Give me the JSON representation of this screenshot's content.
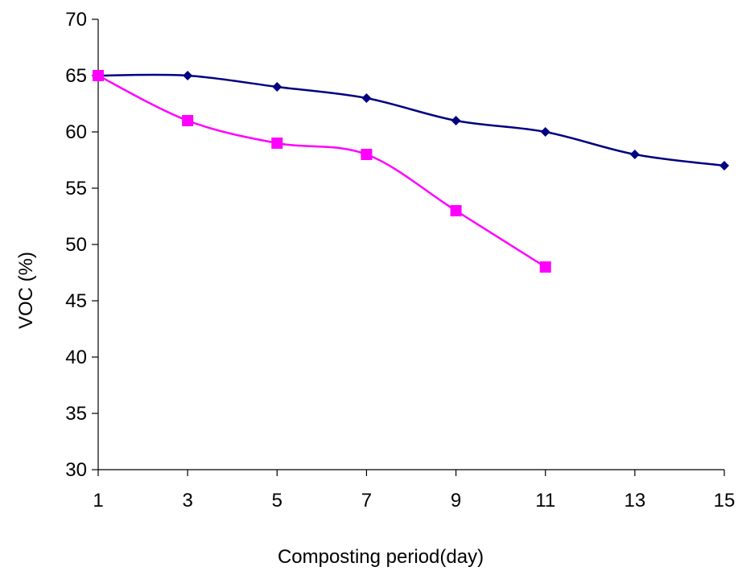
{
  "chart_data": {
    "type": "line",
    "title": "",
    "xlabel": "Composting period(day)",
    "ylabel": "VOC (%)",
    "xlim": [
      1,
      15
    ],
    "ylim": [
      30,
      70
    ],
    "x_ticks": [
      "1",
      "3",
      "5",
      "7",
      "9",
      "11",
      "13",
      "15"
    ],
    "y_ticks": [
      "30",
      "35",
      "40",
      "45",
      "50",
      "55",
      "60",
      "65",
      "70"
    ],
    "grid": false,
    "legend": "none",
    "series": [
      {
        "color": "#000080",
        "marker": "diamond",
        "x": [
          1,
          3,
          5,
          7,
          9,
          11,
          13,
          15
        ],
        "y": [
          65,
          65,
          64,
          63,
          61,
          60,
          58,
          57
        ]
      },
      {
        "color": "#ff00ff",
        "marker": "square",
        "x": [
          1,
          3,
          5,
          7,
          9,
          11
        ],
        "y": [
          65,
          61,
          59,
          58,
          53,
          48
        ]
      }
    ]
  }
}
